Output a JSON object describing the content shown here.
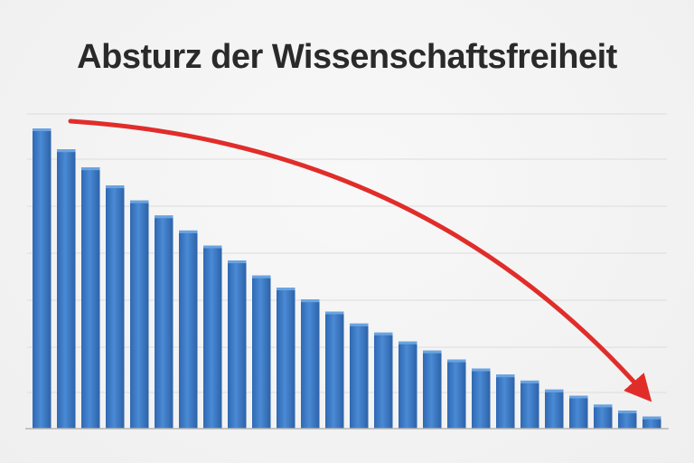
{
  "chart_data": {
    "type": "bar",
    "title": "Absturz der Wissenschaftsfreiheit",
    "xlabel": "",
    "ylabel": "",
    "ylim": [
      0,
      100
    ],
    "grid": true,
    "legend": "none",
    "values": [
      100,
      93,
      87,
      81,
      76,
      71,
      66,
      61,
      56,
      51,
      47,
      43,
      39,
      35,
      32,
      29,
      26,
      23,
      20,
      18,
      16,
      13,
      11,
      8,
      6,
      4
    ],
    "bar_color": "#3a78c2",
    "annotations": [
      {
        "type": "trend-arrow",
        "direction": "down",
        "color": "#e12d2a"
      }
    ]
  }
}
